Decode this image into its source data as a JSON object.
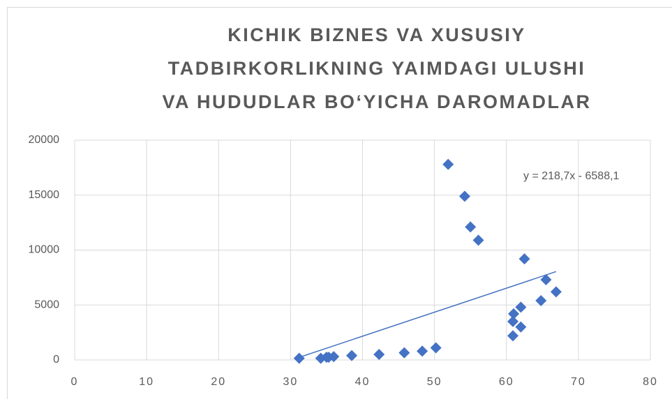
{
  "chart_data": {
    "type": "scatter",
    "title": [
      "KICHIK BIZNES VA XUSUSIY",
      "TADBIRKORLIKNING YAIMDAGI ULUSHI",
      "VA HUDUDLAR BO‘YICHA DAROMADLAR"
    ],
    "series": [
      {
        "color": "#4472c4",
        "x": [
          31.2,
          34.2,
          35.0,
          35.3,
          36.0,
          38.5,
          42.3,
          45.8,
          48.3,
          50.2,
          51.9,
          54.2,
          55.0,
          56.1,
          60.9,
          60.9,
          61.0,
          62.0,
          62.0,
          62.5,
          64.8,
          65.5,
          66.9
        ],
        "values": [
          150,
          150,
          250,
          250,
          300,
          400,
          500,
          650,
          800,
          1100,
          17800,
          14900,
          12100,
          10900,
          2200,
          3500,
          4200,
          4800,
          3000,
          9200,
          5400,
          7300,
          6200
        ]
      }
    ],
    "trendline": {
      "label": "y = 218,7x - 6588,1",
      "slope": 218.7,
      "intercept": -6588.1,
      "color": "#4472c4"
    },
    "xlim": [
      0,
      80
    ],
    "xticks": [
      0,
      10,
      20,
      30,
      40,
      50,
      60,
      70,
      80
    ],
    "ylim": [
      0,
      20000
    ],
    "yticks": [
      0,
      5000,
      10000,
      15000,
      20000
    ],
    "grid": true
  }
}
